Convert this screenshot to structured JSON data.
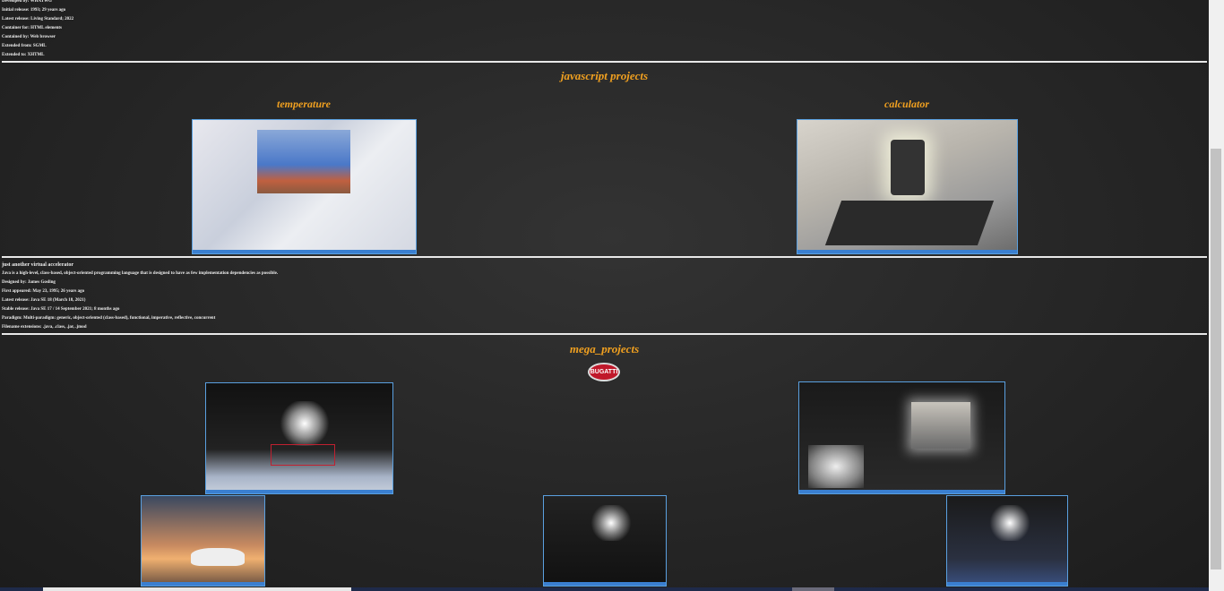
{
  "info_lines": [
    "Developed by: WHATWG",
    "Initial release: 1993; 29 years ago",
    "Latest release: Living Standard; 2022",
    "Container for: HTML elements",
    "Contained by: Web browser",
    "Extended from: SGML",
    "Extended to: XHTML"
  ],
  "js_section": {
    "title": "javascript projects",
    "projects": [
      "temperature",
      "calculator"
    ]
  },
  "java_section": {
    "title": "just another virtual accelerator",
    "lines": [
      "Java is a high-level, class-based, object-oriented programming language that is designed to have as few implementation dependencies as possible.",
      "Designed by: James Gosling",
      "First appeared: May 23, 1995; 26 years ago",
      "Latest release: Java SE 18 (March 18, 2021)",
      "Stable release: Java SE 17 / 14 September 2021; 8 months ago",
      "Paradigm: Multi-paradigm: generic, object-oriented (class-based), functional, imperative, reflective, concurrent",
      "Filename extensions: .java, .class, .jar, .jmod"
    ]
  },
  "mega_section": {
    "title": "mega_projects",
    "logo": "BUGATTI"
  }
}
